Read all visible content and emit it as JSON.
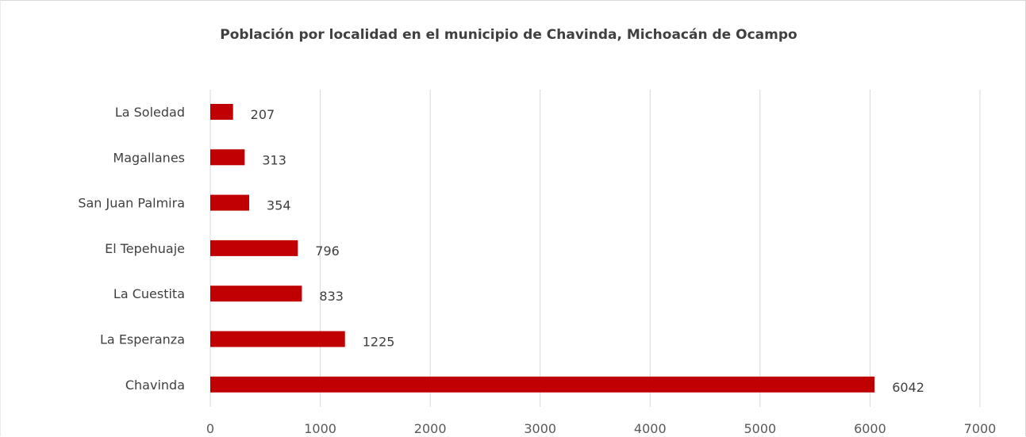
{
  "chart_data": {
    "type": "bar",
    "orientation": "horizontal",
    "title": "Población por localidad en el municipio  de Chavinda, Michoacán de Ocampo",
    "categories": [
      "La Soledad",
      "Magallanes",
      "San Juan Palmira",
      "El Tepehuaje",
      "La Cuestita",
      "La Esperanza",
      "Chavinda"
    ],
    "values": [
      207,
      313,
      354,
      796,
      833,
      1225,
      6042
    ],
    "value_labels": [
      "207",
      "313",
      "354",
      "796",
      "833",
      "1225",
      "6042"
    ],
    "xlim": [
      0,
      7000
    ],
    "xticks": [
      0,
      1000,
      2000,
      3000,
      4000,
      5000,
      6000,
      7000
    ],
    "xtick_labels": [
      "0",
      "1000",
      "2000",
      "3000",
      "4000",
      "5000",
      "6000",
      "7000"
    ],
    "xlabel": "",
    "ylabel": "",
    "grid": "vertical",
    "legend": "none",
    "bar_color": "#c00000",
    "grid_color": "#d9d9d9"
  }
}
